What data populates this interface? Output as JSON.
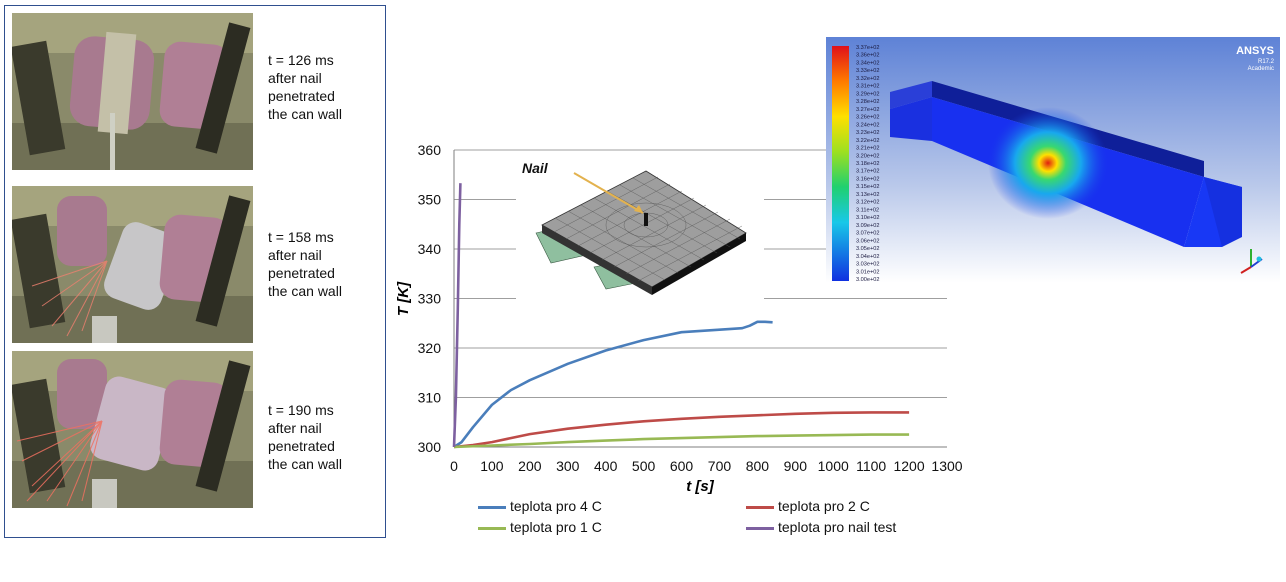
{
  "photos": [
    {
      "caption": [
        "t = 126 ms",
        "after nail",
        "penetrated",
        "the can wall"
      ]
    },
    {
      "caption": [
        "t = 158 ms",
        "after nail",
        "penetrated",
        "the can wall"
      ]
    },
    {
      "caption": [
        "t = 190 ms",
        "after nail",
        "penetrated",
        "the can wall"
      ]
    }
  ],
  "inset": {
    "label": "Nail"
  },
  "simulation": {
    "brand": "ANSYS",
    "version": "R17.2",
    "edition": "Academic",
    "legend_values": [
      "3.37e+02",
      "3.36e+02",
      "3.34e+02",
      "3.33e+02",
      "3.32e+02",
      "3.31e+02",
      "3.29e+02",
      "3.28e+02",
      "3.27e+02",
      "3.26e+02",
      "3.24e+02",
      "3.23e+02",
      "3.22e+02",
      "3.21e+02",
      "3.20e+02",
      "3.18e+02",
      "3.17e+02",
      "3.16e+02",
      "3.15e+02",
      "3.13e+02",
      "3.12e+02",
      "3.11e+02",
      "3.10e+02",
      "3.09e+02",
      "3.07e+02",
      "3.06e+02",
      "3.05e+02",
      "3.04e+02",
      "3.03e+02",
      "3.01e+02",
      "3.00e+02"
    ]
  },
  "chart_data": {
    "type": "line",
    "xlabel": "t [s]",
    "ylabel": "T [K]",
    "xlim": [
      0,
      1300
    ],
    "ylim": [
      300,
      360
    ],
    "xticks": [
      0,
      100,
      200,
      300,
      400,
      500,
      600,
      700,
      800,
      900,
      1000,
      1100,
      1200,
      1300
    ],
    "yticks": [
      300,
      310,
      320,
      330,
      340,
      350,
      360
    ],
    "grid": "horizontal",
    "legend_position": "bottom",
    "series": [
      {
        "name": "teplota pro 4 C",
        "color": "#4a7ebb",
        "x": [
          0,
          20,
          50,
          100,
          150,
          200,
          300,
          400,
          500,
          600,
          700,
          760,
          780,
          800,
          820,
          840
        ],
        "y": [
          300,
          301,
          304,
          308.5,
          311.5,
          313.5,
          316.8,
          319.5,
          321.6,
          323.2,
          323.7,
          324,
          324.5,
          325.3,
          325.3,
          325.2
        ]
      },
      {
        "name": "teplota pro 2 C",
        "color": "#be4b48",
        "x": [
          0,
          50,
          100,
          200,
          300,
          400,
          500,
          600,
          700,
          800,
          900,
          1000,
          1100,
          1200
        ],
        "y": [
          300,
          300.4,
          301,
          302.6,
          303.7,
          304.5,
          305.2,
          305.7,
          306.1,
          306.4,
          306.7,
          306.9,
          307,
          307
        ]
      },
      {
        "name": "teplota pro 1 C",
        "color": "#98b954",
        "x": [
          0,
          100,
          200,
          300,
          400,
          500,
          600,
          700,
          800,
          900,
          1000,
          1100,
          1200
        ],
        "y": [
          300,
          300.3,
          300.6,
          301,
          301.3,
          301.6,
          301.8,
          302,
          302.2,
          302.3,
          302.4,
          302.5,
          302.5
        ]
      },
      {
        "name": "teplota pro nail test",
        "color": "#7d60a0",
        "x": [
          0,
          5,
          10,
          14,
          17
        ],
        "y": [
          300,
          310,
          328,
          345,
          353.3
        ]
      }
    ]
  }
}
